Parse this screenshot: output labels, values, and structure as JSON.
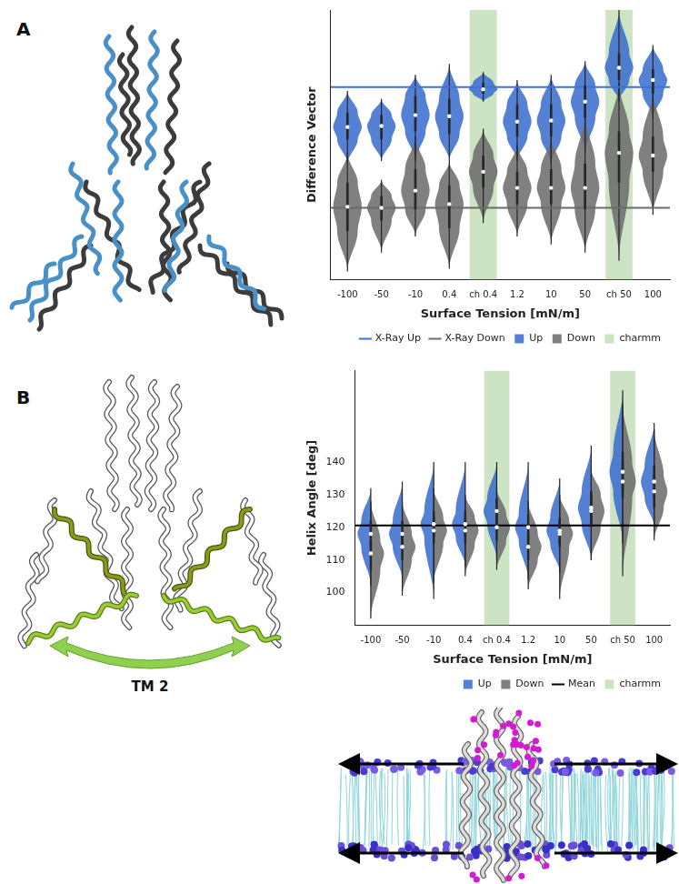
{
  "chart_data": [
    {
      "panel": "A",
      "type": "violin",
      "x_label": "Surface Tension [mN/m]",
      "y_label": "Difference Vector",
      "categories": [
        "-100",
        "-50",
        "-10",
        "0.4",
        "ch 0.4",
        "1.2",
        "10",
        "50",
        "ch 50",
        "100"
      ],
      "ylim": [
        0,
        10
      ],
      "yticks": [],
      "tick_labels": "x",
      "grid": false,
      "legend": "lower right",
      "series": [
        {
          "name": "X-Ray Up",
          "type": "hline",
          "color": "#3b73d9",
          "value": 7.14
        },
        {
          "name": "X-Ray Down",
          "type": "hline",
          "color": "#6b6b6b",
          "value": 2.66
        },
        {
          "name": "Up",
          "type": "violin",
          "color": "#3d6fcf",
          "values": [
            {
              "min": 4.3,
              "q1": 5.2,
              "median": 5.66,
              "q3": 6.2,
              "max": 7.0
            },
            {
              "min": 4.4,
              "q1": 5.2,
              "median": 5.7,
              "q3": 6.1,
              "max": 6.7
            },
            {
              "min": 4.4,
              "q1": 5.5,
              "median": 6.1,
              "q3": 6.8,
              "max": 7.6
            },
            {
              "min": 4.4,
              "q1": 5.4,
              "median": 6.06,
              "q3": 6.7,
              "max": 8.0
            },
            {
              "min": 6.6,
              "q1": 6.9,
              "median": 7.06,
              "q3": 7.3,
              "max": 7.7
            },
            {
              "min": 4.4,
              "q1": 5.3,
              "median": 5.86,
              "q3": 6.5,
              "max": 7.4
            },
            {
              "min": 4.3,
              "q1": 5.3,
              "median": 5.9,
              "q3": 6.5,
              "max": 7.6
            },
            {
              "min": 4.7,
              "q1": 6.0,
              "median": 6.6,
              "q3": 7.2,
              "max": 8.1
            },
            {
              "min": 6.6,
              "q1": 7.4,
              "median": 7.86,
              "q3": 8.4,
              "max": 10.0
            },
            {
              "min": 6.0,
              "q1": 6.9,
              "median": 7.4,
              "q3": 7.8,
              "max": 8.7
            }
          ]
        },
        {
          "name": "Down",
          "type": "violin",
          "color": "#6e6e6e",
          "values": [
            {
              "min": 0.3,
              "q1": 1.8,
              "median": 2.7,
              "q3": 3.6,
              "max": 4.7
            },
            {
              "min": 1.0,
              "q1": 2.2,
              "median": 2.66,
              "q3": 3.1,
              "max": 3.7
            },
            {
              "min": 1.6,
              "q1": 2.6,
              "median": 3.3,
              "q3": 4.1,
              "max": 5.3
            },
            {
              "min": 0.4,
              "q1": 1.9,
              "median": 2.8,
              "q3": 3.5,
              "max": 4.4
            },
            {
              "min": 2.1,
              "q1": 3.4,
              "median": 4.0,
              "q3": 4.6,
              "max": 5.6
            },
            {
              "min": 1.6,
              "q1": 2.8,
              "median": 3.4,
              "q3": 4.0,
              "max": 5.0
            },
            {
              "min": 1.3,
              "q1": 2.8,
              "median": 3.4,
              "q3": 4.1,
              "max": 5.3
            },
            {
              "min": 1.0,
              "q1": 2.6,
              "median": 3.4,
              "q3": 4.3,
              "max": 6.1
            },
            {
              "min": 0.7,
              "q1": 3.6,
              "median": 4.7,
              "q3": 5.5,
              "max": 7.3
            },
            {
              "min": 2.4,
              "q1": 4.0,
              "median": 4.6,
              "q3": 5.3,
              "max": 7.0
            }
          ]
        },
        {
          "name": "charmm",
          "type": "highlight",
          "color": "#c3dfb8",
          "categories": [
            "ch 0.4",
            "ch 50"
          ]
        }
      ]
    },
    {
      "panel": "B",
      "type": "split_violin",
      "annotation": "TM 2",
      "x_label": "Surface Tension [mN/m]",
      "y_label": "Helix Angle [deg]",
      "categories": [
        "-100",
        "-50",
        "-10",
        "0.4",
        "ch 0.4",
        "1.2",
        "10",
        "50",
        "ch 50",
        "100"
      ],
      "ylim": [
        90,
        168
      ],
      "yticks": [
        100,
        110,
        120,
        130,
        140
      ],
      "grid": false,
      "legend": "lower right",
      "series": [
        {
          "name": "Up",
          "type": "violin",
          "color": "#3d6fcf",
          "values": [
            {
              "min": 102,
              "q1": 114,
              "median": 118,
              "q3": 122,
              "max": 132
            },
            {
              "min": 104,
              "q1": 114,
              "median": 118,
              "q3": 122,
              "max": 134
            },
            {
              "min": 98,
              "q1": 117,
              "median": 121,
              "q3": 125,
              "max": 140
            },
            {
              "min": 108,
              "q1": 117,
              "median": 121,
              "q3": 125,
              "max": 140
            },
            {
              "min": 110,
              "q1": 121,
              "median": 125,
              "q3": 129,
              "max": 140
            },
            {
              "min": 104,
              "q1": 116,
              "median": 120,
              "q3": 124,
              "max": 140
            },
            {
              "min": 106,
              "q1": 115,
              "median": 119,
              "q3": 123,
              "max": 135
            },
            {
              "min": 110,
              "q1": 121,
              "median": 126,
              "q3": 131,
              "max": 145
            },
            {
              "min": 115,
              "q1": 131,
              "median": 137,
              "q3": 143,
              "max": 162
            },
            {
              "min": 120,
              "q1": 129,
              "median": 134,
              "q3": 139,
              "max": 152
            }
          ]
        },
        {
          "name": "Down",
          "type": "violin",
          "color": "#6e6e6e",
          "values": [
            {
              "min": 92,
              "q1": 107,
              "median": 112,
              "q3": 116,
              "max": 128
            },
            {
              "min": 99,
              "q1": 110,
              "median": 114,
              "q3": 118,
              "max": 128
            },
            {
              "min": 103,
              "q1": 115,
              "median": 119,
              "q3": 123,
              "max": 132
            },
            {
              "min": 105,
              "q1": 115,
              "median": 119,
              "q3": 123,
              "max": 130
            },
            {
              "min": 107,
              "q1": 116,
              "median": 120,
              "q3": 124,
              "max": 132
            },
            {
              "min": 101,
              "q1": 110,
              "median": 114,
              "q3": 118,
              "max": 128
            },
            {
              "min": 98,
              "q1": 114,
              "median": 118,
              "q3": 122,
              "max": 130
            },
            {
              "min": 110,
              "q1": 120,
              "median": 125,
              "q3": 130,
              "max": 138
            },
            {
              "min": 105,
              "q1": 129,
              "median": 134,
              "q3": 140,
              "max": 158
            },
            {
              "min": 116,
              "q1": 126,
              "median": 131,
              "q3": 136,
              "max": 150
            }
          ]
        },
        {
          "name": "Mean",
          "type": "hline",
          "color": "#000000",
          "value": 120.6
        },
        {
          "name": "charmm",
          "type": "highlight",
          "color": "#c3dfb8",
          "categories": [
            "ch 0.4",
            "ch 50"
          ]
        }
      ]
    }
  ]
}
